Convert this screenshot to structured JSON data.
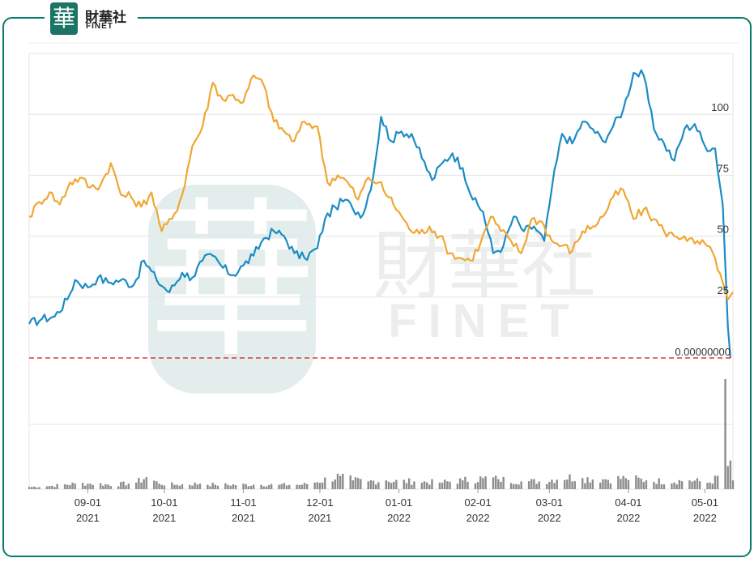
{
  "brand": {
    "badge_char": "華",
    "name_cn": "財華社",
    "name_en": "FINET"
  },
  "watermark": {
    "char": "華",
    "name_cn": "財華社",
    "name_en": "FINET"
  },
  "colors": {
    "series_blue": "#1c8cc4",
    "series_orange": "#f0a733",
    "ref_line": "#d63c3c",
    "volume": "#8c8c8c",
    "frame": "#0b7a6a",
    "grid": "#e5e5e5"
  },
  "chart_data": {
    "type": "line",
    "y_ticks": [
      "100",
      "75",
      "50",
      "25"
    ],
    "ylim": [
      0,
      125
    ],
    "reference_line": {
      "value": 0,
      "label": "0.00000000",
      "style": "dashed"
    },
    "x_tick_labels": [
      {
        "date": "2021-09-01",
        "month": "09-01",
        "year": "2021"
      },
      {
        "date": "2021-10-01",
        "month": "10-01",
        "year": "2021"
      },
      {
        "date": "2021-11-01",
        "month": "11-01",
        "year": "2021"
      },
      {
        "date": "2021-12-01",
        "month": "12-01",
        "year": "2021"
      },
      {
        "date": "2022-01-01",
        "month": "01-01",
        "year": "2022"
      },
      {
        "date": "2022-02-01",
        "month": "02-01",
        "year": "2022"
      },
      {
        "date": "2022-03-01",
        "month": "03-01",
        "year": "2022"
      },
      {
        "date": "2022-04-01",
        "month": "04-01",
        "year": "2022"
      },
      {
        "date": "2022-05-01",
        "month": "05-01",
        "year": "2022"
      }
    ],
    "xlim": [
      "2021-08-09",
      "2022-05-12"
    ],
    "grid": true,
    "series": [
      {
        "color": "#1c8cc4",
        "points": [
          [
            "2021-08-09",
            14
          ],
          [
            "2021-08-14",
            16
          ],
          [
            "2021-08-19",
            17
          ],
          [
            "2021-08-24",
            24
          ],
          [
            "2021-08-27",
            32
          ],
          [
            "2021-09-01",
            29
          ],
          [
            "2021-09-05",
            33
          ],
          [
            "2021-09-09",
            31
          ],
          [
            "2021-09-14",
            32
          ],
          [
            "2021-09-19",
            30
          ],
          [
            "2021-09-23",
            40
          ],
          [
            "2021-09-28",
            32
          ],
          [
            "2021-10-03",
            27
          ],
          [
            "2021-10-08",
            35
          ],
          [
            "2021-10-12",
            33
          ],
          [
            "2021-10-16",
            40
          ],
          [
            "2021-10-20",
            42
          ],
          [
            "2021-10-24",
            37
          ],
          [
            "2021-10-28",
            34
          ],
          [
            "2021-11-01",
            38
          ],
          [
            "2021-11-05",
            42
          ],
          [
            "2021-11-09",
            49
          ],
          [
            "2021-11-13",
            52
          ],
          [
            "2021-11-17",
            50
          ],
          [
            "2021-11-21",
            43
          ],
          [
            "2021-11-25",
            41
          ],
          [
            "2021-11-30",
            45
          ],
          [
            "2021-12-03",
            57
          ],
          [
            "2021-12-07",
            62
          ],
          [
            "2021-12-11",
            65
          ],
          [
            "2021-12-14",
            61
          ],
          [
            "2021-12-18",
            59
          ],
          [
            "2021-12-22",
            75
          ],
          [
            "2021-12-25",
            99
          ],
          [
            "2021-12-29",
            89
          ],
          [
            "2022-01-02",
            93
          ],
          [
            "2022-01-06",
            92
          ],
          [
            "2022-01-10",
            82
          ],
          [
            "2022-01-14",
            73
          ],
          [
            "2022-01-18",
            80
          ],
          [
            "2022-01-22",
            84
          ],
          [
            "2022-01-26",
            78
          ],
          [
            "2022-01-30",
            65
          ],
          [
            "2022-02-03",
            60
          ],
          [
            "2022-02-07",
            43
          ],
          [
            "2022-02-11",
            46
          ],
          [
            "2022-02-15",
            58
          ],
          [
            "2022-02-19",
            52
          ],
          [
            "2022-02-23",
            54
          ],
          [
            "2022-02-27",
            48
          ],
          [
            "2022-03-02",
            70
          ],
          [
            "2022-03-06",
            92
          ],
          [
            "2022-03-10",
            88
          ],
          [
            "2022-03-14",
            97
          ],
          [
            "2022-03-18",
            94
          ],
          [
            "2022-03-22",
            89
          ],
          [
            "2022-03-26",
            95
          ],
          [
            "2022-03-30",
            102
          ],
          [
            "2022-04-03",
            117
          ],
          [
            "2022-04-07",
            116
          ],
          [
            "2022-04-11",
            94
          ],
          [
            "2022-04-15",
            88
          ],
          [
            "2022-04-19",
            81
          ],
          [
            "2022-04-23",
            94
          ],
          [
            "2022-04-27",
            96
          ],
          [
            "2022-05-01",
            87
          ],
          [
            "2022-05-05",
            86
          ],
          [
            "2022-05-08",
            63
          ],
          [
            "2022-05-10",
            13
          ],
          [
            "2022-05-11",
            0
          ]
        ]
      },
      {
        "color": "#f0a733",
        "points": [
          [
            "2021-08-09",
            58
          ],
          [
            "2021-08-13",
            64
          ],
          [
            "2021-08-17",
            68
          ],
          [
            "2021-08-21",
            63
          ],
          [
            "2021-08-25",
            72
          ],
          [
            "2021-08-29",
            74
          ],
          [
            "2021-09-02",
            70
          ],
          [
            "2021-09-06",
            71
          ],
          [
            "2021-09-10",
            80
          ],
          [
            "2021-09-14",
            67
          ],
          [
            "2021-09-18",
            66
          ],
          [
            "2021-09-22",
            62
          ],
          [
            "2021-09-26",
            68
          ],
          [
            "2021-09-30",
            52
          ],
          [
            "2021-10-04",
            57
          ],
          [
            "2021-10-08",
            67
          ],
          [
            "2021-10-12",
            87
          ],
          [
            "2021-10-16",
            95
          ],
          [
            "2021-10-20",
            113
          ],
          [
            "2021-10-24",
            106
          ],
          [
            "2021-10-28",
            108
          ],
          [
            "2021-11-01",
            105
          ],
          [
            "2021-11-05",
            116
          ],
          [
            "2021-11-09",
            112
          ],
          [
            "2021-11-13",
            97
          ],
          [
            "2021-11-17",
            93
          ],
          [
            "2021-11-21",
            89
          ],
          [
            "2021-11-25",
            97
          ],
          [
            "2021-11-30",
            95
          ],
          [
            "2021-12-04",
            72
          ],
          [
            "2021-12-08",
            75
          ],
          [
            "2021-12-12",
            72
          ],
          [
            "2021-12-16",
            65
          ],
          [
            "2021-12-20",
            74
          ],
          [
            "2021-12-24",
            72
          ],
          [
            "2021-12-28",
            66
          ],
          [
            "2022-01-01",
            60
          ],
          [
            "2022-01-05",
            53
          ],
          [
            "2022-01-09",
            51
          ],
          [
            "2022-01-13",
            54
          ],
          [
            "2022-01-17",
            50
          ],
          [
            "2022-01-21",
            43
          ],
          [
            "2022-01-25",
            41
          ],
          [
            "2022-01-29",
            40
          ],
          [
            "2022-02-02",
            47
          ],
          [
            "2022-02-06",
            58
          ],
          [
            "2022-02-10",
            52
          ],
          [
            "2022-02-14",
            48
          ],
          [
            "2022-02-18",
            43
          ],
          [
            "2022-02-22",
            57
          ],
          [
            "2022-02-26",
            56
          ],
          [
            "2022-03-02",
            48
          ],
          [
            "2022-03-06",
            46
          ],
          [
            "2022-03-10",
            44
          ],
          [
            "2022-03-14",
            52
          ],
          [
            "2022-03-18",
            54
          ],
          [
            "2022-03-22",
            58
          ],
          [
            "2022-03-26",
            66
          ],
          [
            "2022-03-30",
            69
          ],
          [
            "2022-04-03",
            57
          ],
          [
            "2022-04-07",
            61
          ],
          [
            "2022-04-11",
            57
          ],
          [
            "2022-04-15",
            52
          ],
          [
            "2022-04-19",
            50
          ],
          [
            "2022-04-23",
            50
          ],
          [
            "2022-04-27",
            47
          ],
          [
            "2022-05-01",
            47
          ],
          [
            "2022-05-05",
            41
          ],
          [
            "2022-05-08",
            31
          ],
          [
            "2022-05-10",
            24
          ],
          [
            "2022-05-12",
            27
          ]
        ]
      }
    ],
    "volume": {
      "ylim": [
        0,
        100
      ],
      "bars": [
        [
          "2021-08-09",
          2
        ],
        [
          "2021-08-18",
          3
        ],
        [
          "2021-08-27",
          5
        ],
        [
          "2021-09-02",
          5
        ],
        [
          "2021-09-11",
          4
        ],
        [
          "2021-09-20",
          6
        ],
        [
          "2021-09-24",
          11
        ],
        [
          "2021-09-29",
          5
        ],
        [
          "2021-10-06",
          4
        ],
        [
          "2021-10-15",
          5
        ],
        [
          "2021-10-21",
          4
        ],
        [
          "2021-10-30",
          4
        ],
        [
          "2021-11-05",
          4
        ],
        [
          "2021-11-15",
          4
        ],
        [
          "2021-11-24",
          4
        ],
        [
          "2021-11-29",
          6
        ],
        [
          "2021-12-05",
          10
        ],
        [
          "2021-12-09",
          12
        ],
        [
          "2021-12-14",
          8
        ],
        [
          "2021-12-20",
          7
        ],
        [
          "2021-12-27",
          8
        ],
        [
          "2022-01-01",
          7
        ],
        [
          "2022-01-07",
          7
        ],
        [
          "2022-01-17",
          6
        ],
        [
          "2022-01-26",
          8
        ],
        [
          "2022-02-03",
          10
        ],
        [
          "2022-02-09",
          9
        ],
        [
          "2022-02-18",
          7
        ],
        [
          "2022-02-27",
          7
        ],
        [
          "2022-03-06",
          11
        ],
        [
          "2022-03-14",
          10
        ],
        [
          "2022-03-23",
          9
        ],
        [
          "2022-03-31",
          10
        ],
        [
          "2022-04-08",
          8
        ],
        [
          "2022-04-16",
          7
        ],
        [
          "2022-04-25",
          8
        ],
        [
          "2022-05-03",
          6
        ],
        [
          "2022-05-07",
          12
        ],
        [
          "2022-05-09",
          100
        ],
        [
          "2022-05-10",
          21
        ],
        [
          "2022-05-11",
          26
        ]
      ]
    }
  }
}
